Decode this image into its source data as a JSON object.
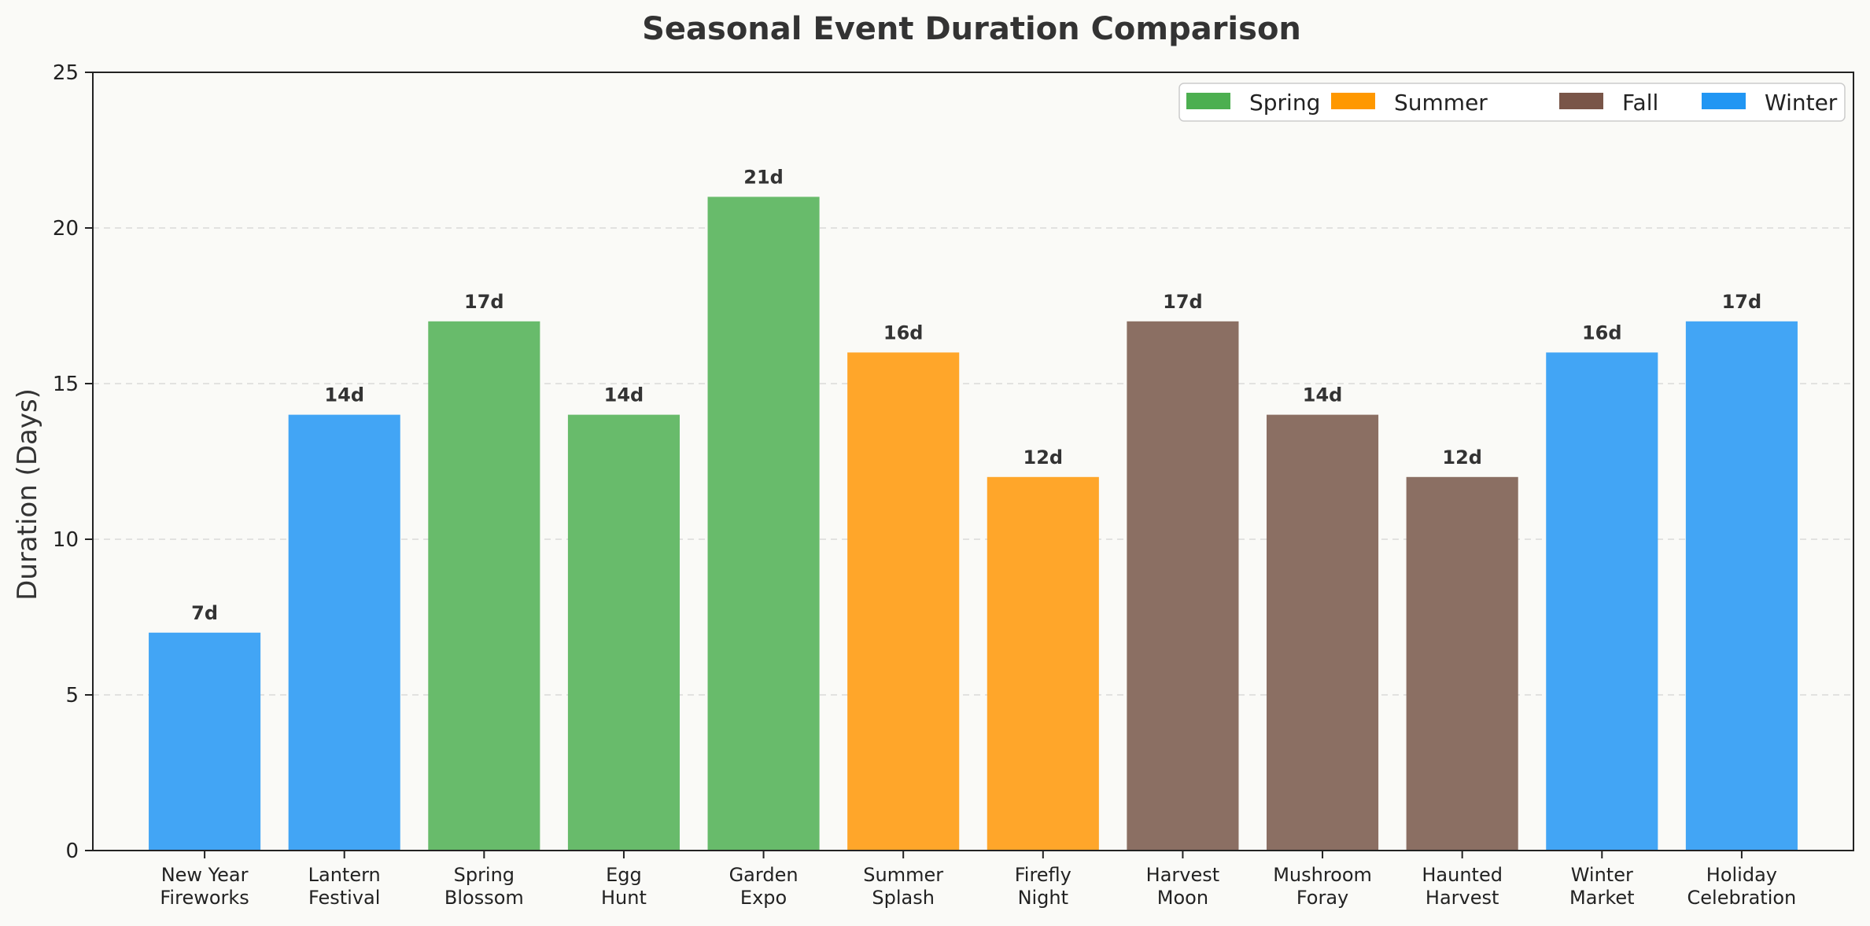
{
  "chart_data": {
    "type": "bar",
    "title": "Seasonal Event Duration Comparison",
    "xlabel": "",
    "ylabel": "Duration (Days)",
    "ylim": [
      0,
      25
    ],
    "yticks": [
      0,
      5,
      10,
      15,
      20,
      25
    ],
    "grid": "y-dashed",
    "legend_position": "top-right",
    "value_suffix": "d",
    "categories": [
      "New Year\nFireworks",
      "Lantern\nFestival",
      "Spring\nBlossom",
      "Egg\nHunt",
      "Garden\nExpo",
      "Summer\nSplash",
      "Firefly\nNight",
      "Harvest\nMoon",
      "Mushroom\nForay",
      "Haunted\nHarvest",
      "Winter\nMarket",
      "Holiday\nCelebration"
    ],
    "values": [
      7,
      14,
      17,
      14,
      21,
      16,
      12,
      17,
      14,
      12,
      16,
      17
    ],
    "bar_labels": [
      "7d",
      "14d",
      "17d",
      "14d",
      "21d",
      "16d",
      "12d",
      "17d",
      "14d",
      "12d",
      "16d",
      "17d"
    ],
    "season": [
      "Winter",
      "Winter",
      "Spring",
      "Spring",
      "Spring",
      "Summer",
      "Summer",
      "Fall",
      "Fall",
      "Fall",
      "Winter",
      "Winter"
    ],
    "legend": [
      {
        "name": "Spring",
        "color": "#4caf50"
      },
      {
        "name": "Summer",
        "color": "#ff9800"
      },
      {
        "name": "Fall",
        "color": "#795548"
      },
      {
        "name": "Winter",
        "color": "#2196f3"
      }
    ],
    "bar_colors": {
      "Spring": "#68bb6b",
      "Summer": "#ffa62a",
      "Fall": "#8b6f63",
      "Winter": "#42a5f5"
    }
  }
}
